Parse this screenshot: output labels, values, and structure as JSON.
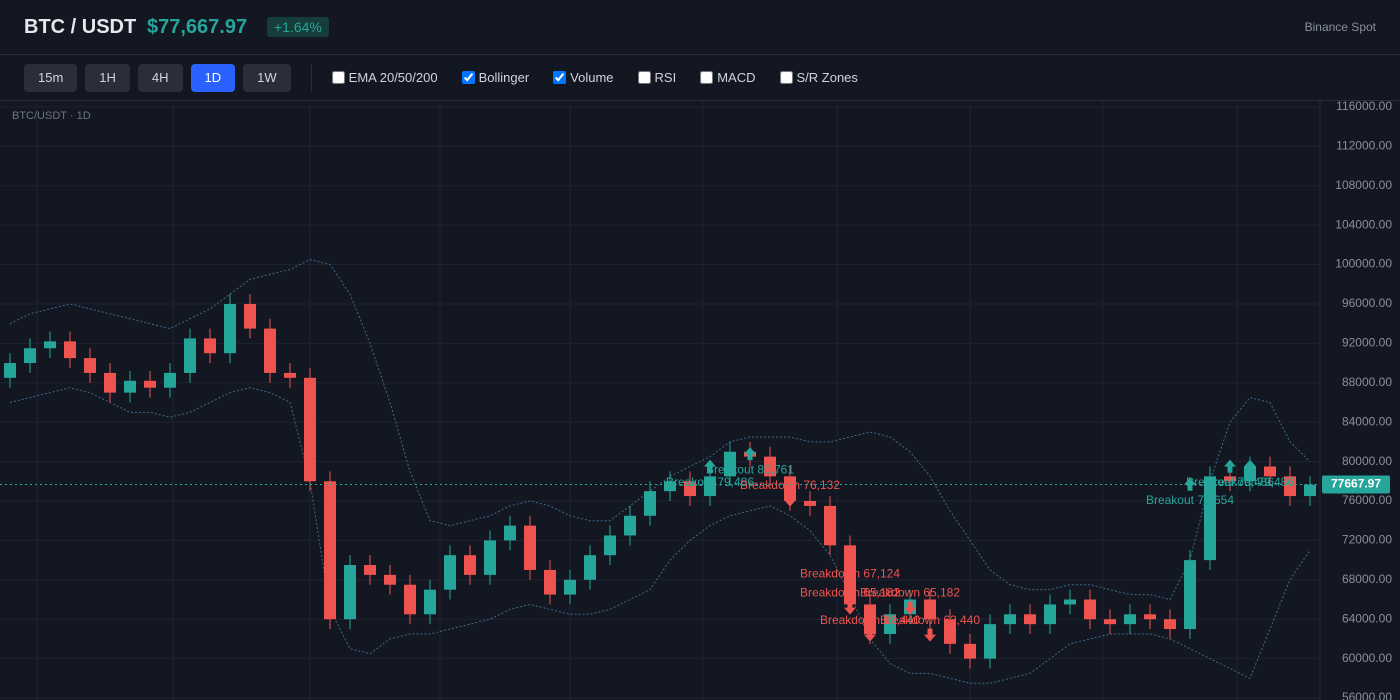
{
  "header": {
    "symbol": "BTC / USDT",
    "price": "$77,667.97",
    "change": "+1.64%",
    "exchange": "Binance Spot"
  },
  "toolbar": {
    "intervals": [
      {
        "label": "15m",
        "active": false
      },
      {
        "label": "1H",
        "active": false
      },
      {
        "label": "4H",
        "active": false
      },
      {
        "label": "1D",
        "active": true
      },
      {
        "label": "1W",
        "active": false
      }
    ],
    "indicators": [
      {
        "label": "EMA 20/50/200",
        "checked": false
      },
      {
        "label": "Bollinger",
        "checked": true
      },
      {
        "label": "Volume",
        "checked": true
      },
      {
        "label": "RSI",
        "checked": false
      },
      {
        "label": "MACD",
        "checked": false
      },
      {
        "label": "S/R Zones",
        "checked": false
      }
    ]
  },
  "chart_data": {
    "type": "candlestick",
    "title": "BTC/USDT · 1D",
    "up_color": "#26a69a",
    "down_color": "#ef5350",
    "band_color": "#3d6a8f",
    "ylim": [
      55800,
      116600
    ],
    "yticks": [
      {
        "value": 56000,
        "label": "56000.00"
      },
      {
        "value": 60000,
        "label": "60000.00"
      },
      {
        "value": 64000,
        "label": "64000.00"
      },
      {
        "value": 68000,
        "label": "68000.00"
      },
      {
        "value": 72000,
        "label": "72000.00"
      },
      {
        "value": 76000,
        "label": "76000.00"
      },
      {
        "value": 80000,
        "label": "80000.00"
      },
      {
        "value": 84000,
        "label": "84000.00"
      },
      {
        "value": 88000,
        "label": "88000.00"
      },
      {
        "value": 92000,
        "label": "92000.00"
      },
      {
        "value": 96000,
        "label": "96000.00"
      },
      {
        "value": 100000,
        "label": "100000.00"
      },
      {
        "value": 104000,
        "label": "104000.00"
      },
      {
        "value": 108000,
        "label": "108000.00"
      },
      {
        "value": 112000,
        "label": "112000.00"
      },
      {
        "value": 116000,
        "label": "116000.00"
      }
    ],
    "grid": true,
    "last_price": 77667.97,
    "open": [
      88500,
      90000,
      91500,
      92200,
      90500,
      89000,
      87000,
      88200,
      87500,
      89000,
      92500,
      91000,
      96000,
      93500,
      89000,
      88500,
      78000,
      64000,
      69500,
      68500,
      67500,
      64500,
      67000,
      70500,
      68500,
      72000,
      73500,
      69000,
      66500,
      68000,
      70500,
      72500,
      74500,
      77000,
      78000,
      76500,
      78500,
      81000,
      80500,
      78500,
      76000,
      75500,
      71500,
      65500,
      62500,
      64500,
      66000,
      64000,
      61500,
      60000,
      63500,
      64500,
      63500,
      65500,
      66000,
      64000,
      63500,
      64500,
      64000,
      63000,
      70000,
      78500,
      78000,
      79500,
      78500,
      76500
    ],
    "high": [
      91000,
      92500,
      93200,
      93200,
      91500,
      90000,
      89200,
      89200,
      90000,
      93500,
      93500,
      97000,
      97000,
      94500,
      90000,
      89500,
      79000,
      70500,
      70500,
      69500,
      68500,
      68000,
      71500,
      71500,
      73000,
      74500,
      74500,
      70000,
      69000,
      71500,
      73500,
      75500,
      78000,
      79000,
      79000,
      79500,
      82000,
      82000,
      81500,
      79500,
      77000,
      76500,
      72500,
      66500,
      65500,
      67000,
      67000,
      65000,
      62500,
      64500,
      65500,
      65500,
      66500,
      67000,
      67000,
      65000,
      65500,
      65500,
      65000,
      71000,
      79500,
      79500,
      80500,
      80500,
      79500,
      78500
    ],
    "low": [
      87500,
      89000,
      90500,
      89500,
      88000,
      86000,
      86000,
      86500,
      86500,
      88000,
      90000,
      90000,
      92500,
      88000,
      87500,
      77000,
      63000,
      63000,
      67500,
      66500,
      63500,
      63500,
      66000,
      67500,
      67500,
      71000,
      68000,
      65500,
      65500,
      67000,
      69500,
      71500,
      73500,
      76000,
      75500,
      75500,
      77500,
      79500,
      77500,
      75000,
      74500,
      70500,
      64500,
      61500,
      61500,
      63500,
      63000,
      60500,
      59000,
      59000,
      62500,
      62500,
      62500,
      64500,
      63000,
      62500,
      62500,
      63000,
      62000,
      62000,
      69000,
      77000,
      77000,
      77500,
      75500,
      75500
    ],
    "close": [
      90000,
      91500,
      92200,
      90500,
      89000,
      87000,
      88200,
      87500,
      89000,
      92500,
      91000,
      96000,
      93500,
      89000,
      88500,
      78000,
      64000,
      69500,
      68500,
      67500,
      64500,
      67000,
      70500,
      68500,
      72000,
      73500,
      69000,
      66500,
      68000,
      70500,
      72500,
      74500,
      77000,
      78000,
      76500,
      78500,
      81000,
      80500,
      78500,
      76000,
      75500,
      71500,
      65500,
      62500,
      64500,
      66000,
      64000,
      61500,
      60000,
      63500,
      64500,
      63500,
      65500,
      66000,
      64000,
      63500,
      64500,
      64000,
      63000,
      70000,
      78500,
      78000,
      79500,
      78500,
      76500,
      77667.97
    ],
    "upper_band": [
      94000,
      95000,
      95500,
      96000,
      95500,
      95000,
      94500,
      94000,
      93500,
      94500,
      95500,
      97000,
      98500,
      99000,
      99500,
      100500,
      100000,
      97000,
      92000,
      86000,
      79000,
      74000,
      73500,
      74000,
      74500,
      75500,
      76000,
      75500,
      74500,
      74000,
      74000,
      75500,
      77000,
      78500,
      79500,
      80500,
      82000,
      82500,
      82500,
      82500,
      82000,
      82000,
      82500,
      83000,
      82500,
      81000,
      78500,
      75000,
      72000,
      69000,
      67500,
      67000,
      67000,
      67500,
      67500,
      67000,
      66500,
      66500,
      66000,
      70000,
      78000,
      84000,
      86500,
      86000,
      82000,
      80000
    ],
    "lower_band": [
      86000,
      86500,
      87000,
      87500,
      87000,
      86000,
      85000,
      85000,
      84500,
      85000,
      86000,
      87000,
      87500,
      87000,
      86000,
      78000,
      65000,
      61000,
      60500,
      62000,
      62500,
      62500,
      63000,
      63500,
      64000,
      65000,
      65500,
      65000,
      64500,
      64500,
      65000,
      66000,
      67000,
      70000,
      72000,
      73500,
      74500,
      75000,
      75500,
      74500,
      73000,
      70500,
      66500,
      62000,
      59500,
      58500,
      58500,
      58000,
      57500,
      57500,
      58000,
      58500,
      60000,
      61500,
      62000,
      62500,
      62500,
      62500,
      62000,
      61000,
      60000,
      59000,
      58000,
      63000,
      68000,
      71000
    ],
    "signals": [
      {
        "index": 35,
        "price": 79486,
        "label": "Breakout 79,486",
        "arrow": "up",
        "color": "#26a69a"
      },
      {
        "index": 37,
        "price": 80761,
        "label": "Breakout 80,761",
        "arrow": "up",
        "color": "#26a69a"
      },
      {
        "index": 39,
        "price": 76132,
        "label": "Breakdown 76,132",
        "arrow": "down",
        "color": "#ef5350"
      },
      {
        "index": 42,
        "price": 67124,
        "label": "Breakdown 67,124",
        "arrow": "down",
        "color": "#ef5350"
      },
      {
        "index": 42,
        "price": 65182,
        "label": "Breakdown 65,182",
        "arrow": "down",
        "color": "#ef5350"
      },
      {
        "index": 45,
        "price": 65182,
        "label": "Breakdown 65,182",
        "arrow": "down",
        "color": "#ef5350"
      },
      {
        "index": 43,
        "price": 62440,
        "label": "Breakdown 62,440",
        "arrow": "down",
        "color": "#ef5350"
      },
      {
        "index": 46,
        "price": 62440,
        "label": "Breakdown 62,440",
        "arrow": "down",
        "color": "#ef5350"
      },
      {
        "index": 59,
        "price": 77654,
        "label": "Breakout 77,654",
        "arrow": "up",
        "color": "#26a69a"
      },
      {
        "index": 61,
        "price": 79486,
        "label": "Breakout 79,486",
        "arrow": "up",
        "color": "#26a69a"
      },
      {
        "index": 62,
        "price": 79486,
        "label": "Breakout 79,486",
        "arrow": "up",
        "color": "#26a69a"
      }
    ]
  }
}
